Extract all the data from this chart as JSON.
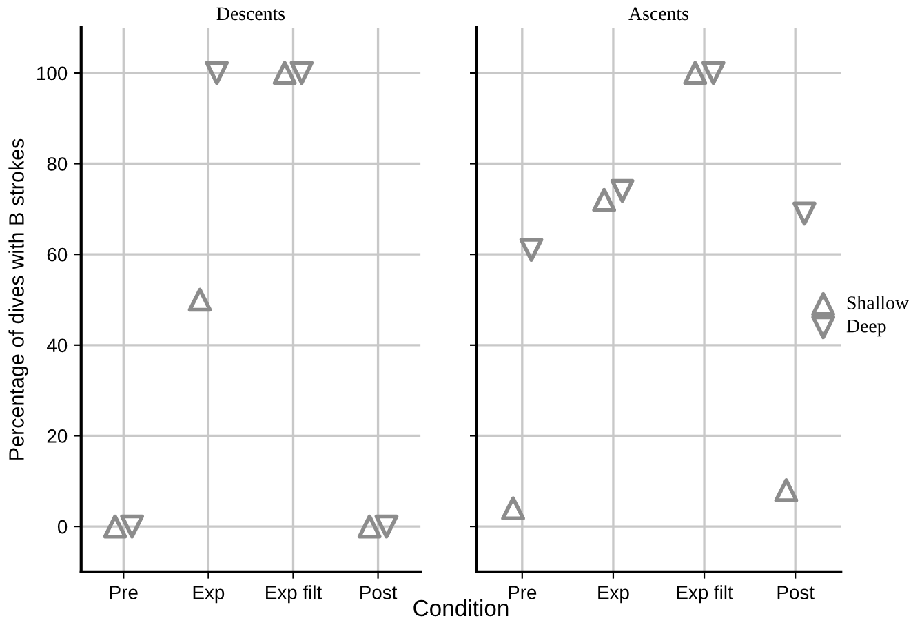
{
  "chart_data": [
    {
      "type": "scatter",
      "title": "Descents",
      "xlabel": "Condition",
      "ylabel": "Percentage of dives with B strokes",
      "categories": [
        "Pre",
        "Exp",
        "Exp filt",
        "Post"
      ],
      "ylim": [
        -10,
        110
      ],
      "yticks": [
        0,
        20,
        40,
        60,
        80,
        100
      ],
      "grid": true,
      "series": [
        {
          "color": "#8c8c8c",
          "marker": "triangle",
          "values": [
            0,
            50,
            100,
            0
          ]
        },
        {
          "color": "#8c8c8c",
          "marker": "triangle_down",
          "values": [
            0,
            100,
            100,
            0
          ]
        }
      ]
    },
    {
      "type": "scatter",
      "title": "Ascents",
      "categories": [
        "Pre",
        "Exp",
        "Exp filt",
        "Post"
      ],
      "ylim": [
        -10,
        110
      ],
      "yticks": [
        0,
        20,
        40,
        60,
        80,
        100
      ],
      "grid": true,
      "legend": "right",
      "tick_labels": "x",
      "series": [
        {
          "name": "Shallow",
          "color": "#8c8c8c",
          "marker": "triangle",
          "values": [
            4,
            72,
            100,
            8
          ]
        },
        {
          "name": "Deep",
          "color": "#8c8c8c",
          "marker": "triangle_down",
          "values": [
            61,
            74,
            100,
            69
          ]
        }
      ]
    }
  ]
}
